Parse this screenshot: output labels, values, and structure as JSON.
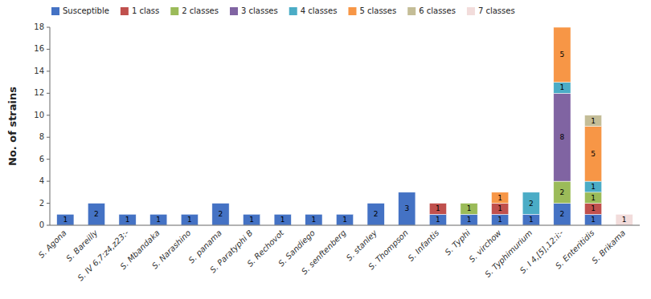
{
  "chart_data": {
    "type": "bar",
    "stacked": true,
    "data_labels": true,
    "grid": false,
    "legend": "upper left",
    "y_label": "No. of strains",
    "categories": [
      "S. Agona",
      "S. Bareilly",
      "S. IV 6,7:z4,z23:-",
      "S. Mbandaka",
      "S. Narashino",
      "S. panama",
      "S. Paratyphi B",
      "S. Rechovot",
      "S. Sandiego",
      "S. senftenberg",
      "S. stanley",
      "S. Thompson",
      "S. Infantis",
      "S. Typhi",
      "S. virchow",
      "S. Typhimurium",
      "S. I 4,[5],12:i:-",
      "S. Enteritidis",
      "S. Brikama"
    ],
    "series": [
      {
        "name": "Susceptible",
        "color": "#4472C4",
        "values": [
          1,
          2,
          1,
          1,
          1,
          2,
          1,
          1,
          1,
          1,
          2,
          3,
          1,
          1,
          1,
          1,
          2,
          1,
          0
        ]
      },
      {
        "name": "1 class",
        "color": "#C0504D",
        "values": [
          0,
          0,
          0,
          0,
          0,
          0,
          0,
          0,
          0,
          0,
          0,
          0,
          1,
          0,
          1,
          0,
          0,
          1,
          0
        ]
      },
      {
        "name": "2 classes",
        "color": "#9BBB59",
        "values": [
          0,
          0,
          0,
          0,
          0,
          0,
          0,
          0,
          0,
          0,
          0,
          0,
          0,
          1,
          0,
          0,
          2,
          1,
          0
        ]
      },
      {
        "name": "3 classes",
        "color": "#8064A2",
        "values": [
          0,
          0,
          0,
          0,
          0,
          0,
          0,
          0,
          0,
          0,
          0,
          0,
          0,
          0,
          0,
          0,
          8,
          0,
          0
        ]
      },
      {
        "name": "4 classes",
        "color": "#4BACC6",
        "values": [
          0,
          0,
          0,
          0,
          0,
          0,
          0,
          0,
          0,
          0,
          0,
          0,
          0,
          0,
          0,
          2,
          1,
          1,
          0
        ]
      },
      {
        "name": "5 classes",
        "color": "#F79646",
        "values": [
          0,
          0,
          0,
          0,
          0,
          0,
          0,
          0,
          0,
          0,
          0,
          0,
          0,
          0,
          1,
          0,
          5,
          5,
          0
        ]
      },
      {
        "name": "6 classes",
        "color": "#C4BD97",
        "values": [
          0,
          0,
          0,
          0,
          0,
          0,
          0,
          0,
          0,
          0,
          0,
          0,
          0,
          0,
          0,
          0,
          0,
          1,
          0
        ]
      },
      {
        "name": "7 classes",
        "color": "#F2DCDB",
        "values": [
          0,
          0,
          0,
          0,
          0,
          0,
          0,
          0,
          0,
          0,
          0,
          0,
          0,
          0,
          0,
          0,
          0,
          0,
          1
        ]
      }
    ],
    "ylim": [
      0,
      18
    ],
    "yticks": [
      0,
      2,
      4,
      6,
      8,
      10,
      12,
      14,
      16,
      18
    ]
  }
}
